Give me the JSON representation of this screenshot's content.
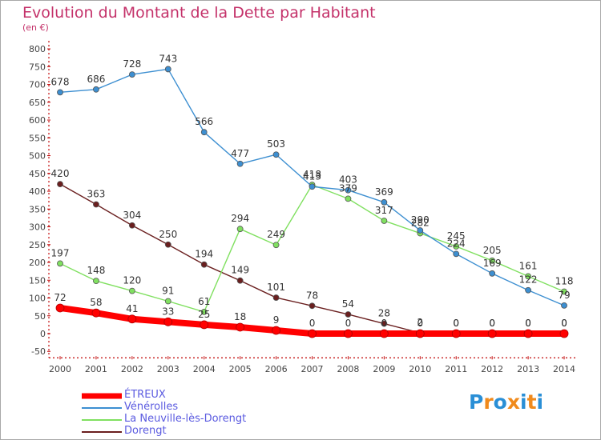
{
  "chart_data": {
    "type": "line",
    "title": "Evolution du Montant de la Dette par Habitant",
    "subtitle": "(en €)",
    "xlabel": "",
    "ylabel": "",
    "x": [
      "2000",
      "2001",
      "2002",
      "2003",
      "2004",
      "2005",
      "2006",
      "2007",
      "2008",
      "2009",
      "2010",
      "2011",
      "2012",
      "2013",
      "2014"
    ],
    "yticks": [
      800,
      750,
      700,
      650,
      600,
      550,
      500,
      450,
      400,
      350,
      300,
      250,
      200,
      150,
      100,
      50,
      0,
      -50
    ],
    "ylim": [
      -50,
      800
    ],
    "grid": false,
    "legend_position": "bottom-left",
    "series": [
      {
        "name": "ÉTREUX",
        "color": "#ff0000",
        "values": [
          72,
          58,
          41,
          33,
          25,
          18,
          9,
          0,
          0,
          0,
          0,
          0,
          0,
          0,
          0
        ],
        "labels": [
          "72",
          "58",
          "41",
          "33",
          "25",
          "18",
          "9",
          "0",
          "0",
          "0",
          "0",
          "0",
          "0",
          "0",
          "0"
        ]
      },
      {
        "name": "Vénérolles",
        "color": "#3d8fd1",
        "values": [
          678,
          686,
          728,
          743,
          566,
          477,
          503,
          413,
          403,
          369,
          290,
          224,
          169,
          122,
          79
        ],
        "labels": [
          "678",
          "686",
          "728",
          "743",
          "566",
          "477",
          "503",
          "413",
          "403",
          "369",
          "290",
          "224",
          "169",
          "122",
          "79"
        ]
      },
      {
        "name": "La Neuville-lès-Dorengt",
        "color": "#80e060",
        "values": [
          197,
          148,
          120,
          91,
          61,
          294,
          249,
          418,
          379,
          317,
          282,
          245,
          205,
          161,
          118
        ],
        "labels": [
          "197",
          "148",
          "120",
          "91",
          "61",
          "294",
          "249",
          "418",
          "379",
          "317",
          "282",
          "245",
          "205",
          "161",
          "118"
        ]
      },
      {
        "name": "Dorengt",
        "color": "#6a1f1f",
        "values": [
          420,
          363,
          304,
          250,
          194,
          149,
          101,
          78,
          54,
          28,
          2,
          0,
          0,
          0,
          0
        ],
        "labels": [
          "420",
          "363",
          "304",
          "250",
          "194",
          "149",
          "101",
          "78",
          "54",
          "28",
          "2",
          "0",
          "0",
          "0",
          "0"
        ]
      }
    ]
  },
  "logo": {
    "letters": [
      "P",
      "r",
      "o",
      "x",
      "i",
      "t",
      "i"
    ],
    "colors": [
      "#2a8fd6",
      "#f08a1c",
      "#2a8fd6",
      "#f08a1c",
      "#2a8fd6",
      "#f08a1c",
      "#2a8fd6"
    ]
  }
}
